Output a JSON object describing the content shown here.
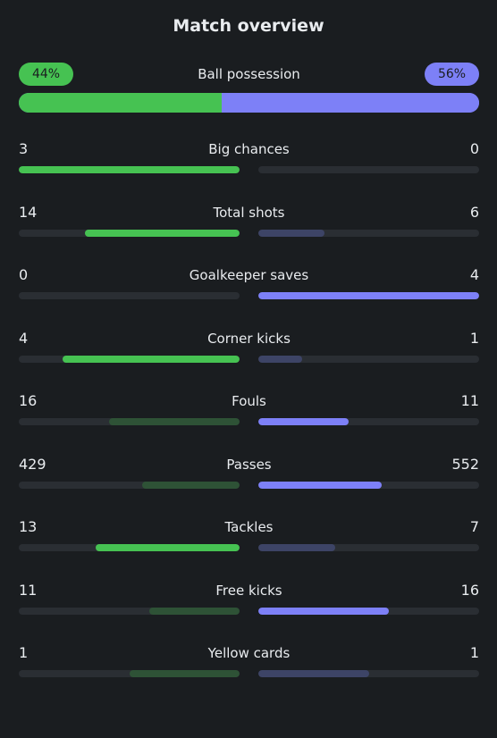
{
  "header": {
    "title": "Match overview"
  },
  "colors": {
    "home_bright": "#46c252",
    "home_dim": "#2e5236",
    "away_bright": "#7d80f7",
    "away_dim": "#3d4466"
  },
  "possession": {
    "label": "Ball possession",
    "home_text": "44%",
    "away_text": "56%",
    "home_value": 44,
    "away_value": 56
  },
  "stats": [
    {
      "label": "Big chances",
      "home": "3",
      "away": "0",
      "home_fill": 1.0,
      "away_fill": 0.0,
      "home_bright": true,
      "away_bright": false
    },
    {
      "label": "Total shots",
      "home": "14",
      "away": "6",
      "home_fill": 0.7,
      "away_fill": 0.3,
      "home_bright": true,
      "away_bright": false
    },
    {
      "label": "Goalkeeper saves",
      "home": "0",
      "away": "4",
      "home_fill": 0.0,
      "away_fill": 1.0,
      "home_bright": false,
      "away_bright": true
    },
    {
      "label": "Corner kicks",
      "home": "4",
      "away": "1",
      "home_fill": 0.8,
      "away_fill": 0.2,
      "home_bright": true,
      "away_bright": false
    },
    {
      "label": "Fouls",
      "home": "16",
      "away": "11",
      "home_fill": 0.59,
      "away_fill": 0.41,
      "home_bright": false,
      "away_bright": true
    },
    {
      "label": "Passes",
      "home": "429",
      "away": "552",
      "home_fill": 0.44,
      "away_fill": 0.56,
      "home_bright": false,
      "away_bright": true
    },
    {
      "label": "Tackles",
      "home": "13",
      "away": "7",
      "home_fill": 0.65,
      "away_fill": 0.35,
      "home_bright": true,
      "away_bright": false
    },
    {
      "label": "Free kicks",
      "home": "11",
      "away": "16",
      "home_fill": 0.41,
      "away_fill": 0.59,
      "home_bright": false,
      "away_bright": true
    },
    {
      "label": "Yellow cards",
      "home": "1",
      "away": "1",
      "home_fill": 0.5,
      "away_fill": 0.5,
      "home_bright": false,
      "away_bright": false
    }
  ]
}
